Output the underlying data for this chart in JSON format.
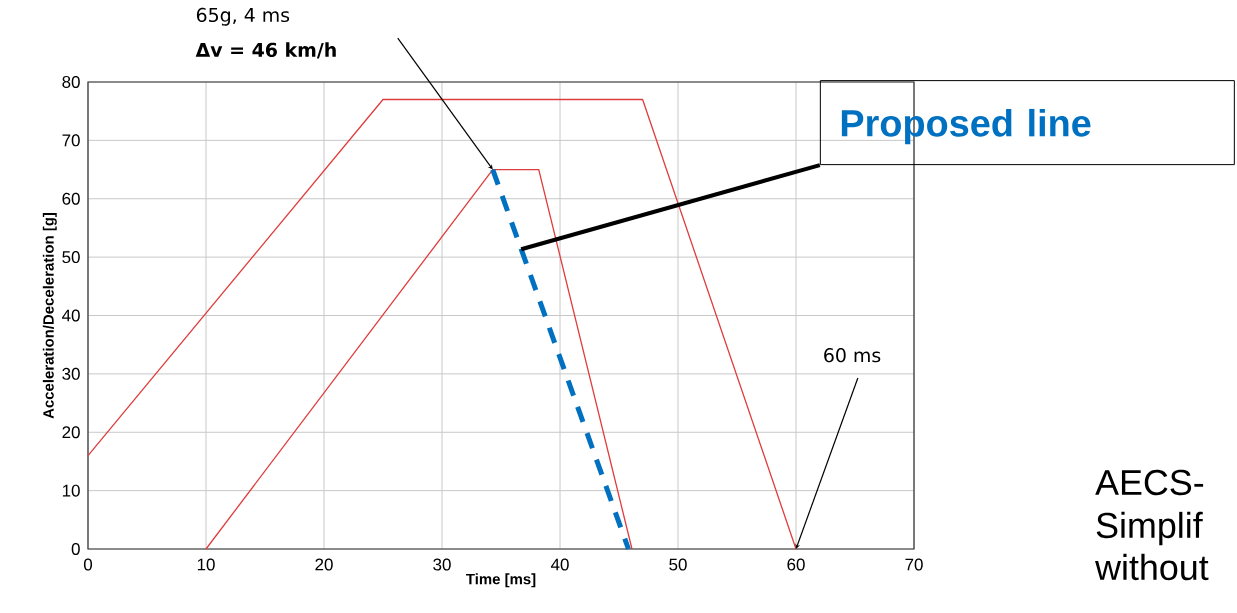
{
  "chart_data": {
    "type": "line",
    "xlabel": "Time [ms]",
    "ylabel": "Acceleration/Deceleration [g]",
    "xlim": [
      0,
      70
    ],
    "ylim": [
      0,
      80
    ],
    "xticks": [
      0,
      10,
      20,
      30,
      40,
      50,
      60,
      70
    ],
    "yticks": [
      0,
      10,
      20,
      30,
      40,
      50,
      60,
      70,
      80
    ],
    "grid": true,
    "marker": "none",
    "series": [
      {
        "x": [
          0,
          25,
          47,
          60
        ],
        "values": [
          16,
          77,
          77,
          0
        ],
        "color": "#e03c3c",
        "line_style": "solid"
      },
      {
        "x": [
          10,
          34.3,
          38.2,
          46.1
        ],
        "values": [
          0,
          65,
          65,
          0
        ],
        "color": "#e03c3c",
        "line_style": "solid"
      },
      {
        "name": "Proposed line",
        "x": [
          34.3,
          45.8
        ],
        "values": [
          65,
          0
        ],
        "color": "#0070c0",
        "line_style": "dashed"
      }
    ],
    "annotations": [
      "65g, 4 ms",
      "**Δv = 46 km/h**",
      {
        "text": "60 ms",
        "x": 60,
        "y": 0
      },
      "AECS-",
      "Simplif",
      "without"
    ]
  }
}
